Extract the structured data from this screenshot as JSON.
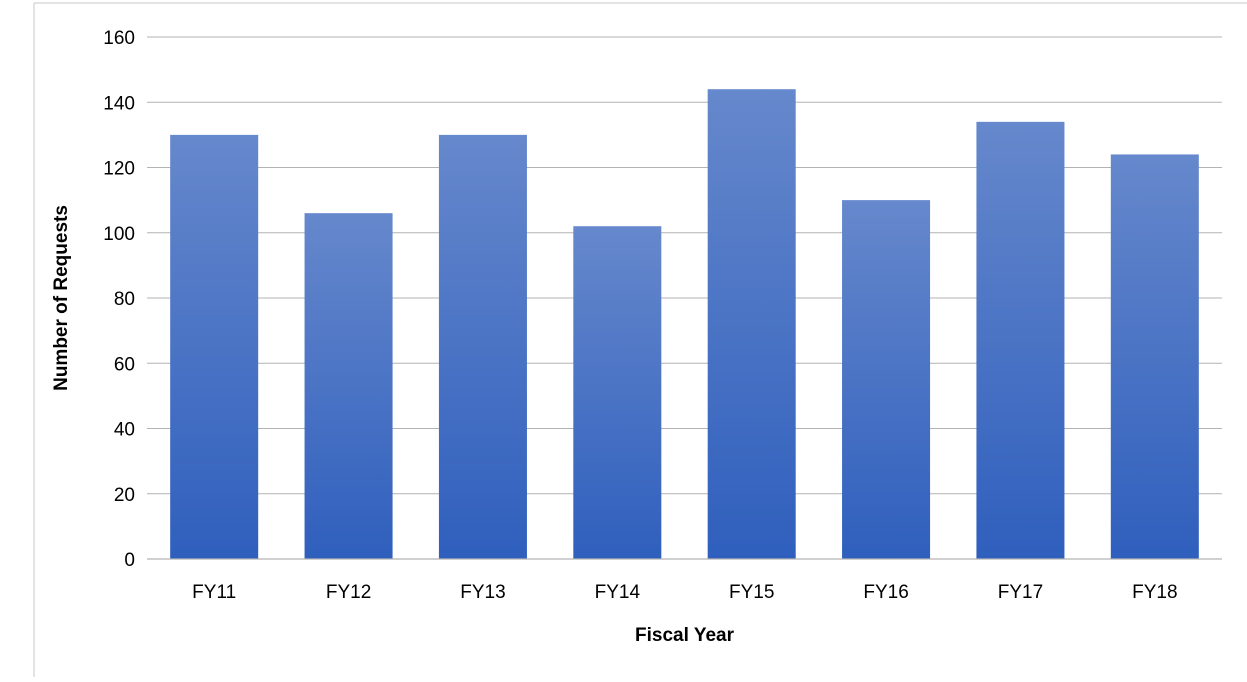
{
  "chart_data": {
    "type": "bar",
    "title": "",
    "xlabel": "Fiscal Year",
    "ylabel": "Number of Requests",
    "categories": [
      "FY11",
      "FY12",
      "FY13",
      "FY14",
      "FY15",
      "FY16",
      "FY17",
      "FY18"
    ],
    "series": [
      {
        "values": [
          130,
          106,
          130,
          102,
          144,
          110,
          134,
          124
        ]
      }
    ],
    "ylim": [
      0,
      160
    ],
    "yticks": [
      "0",
      "20",
      "40",
      "60",
      "80",
      "100",
      "120",
      "140",
      "160"
    ],
    "grid": true,
    "legend": "none",
    "colors": {
      "bar_top": "#6688cc",
      "bar_bottom": "#2f5fbd",
      "grid": "#b3b3b3",
      "border": "#c8c8c8"
    }
  }
}
